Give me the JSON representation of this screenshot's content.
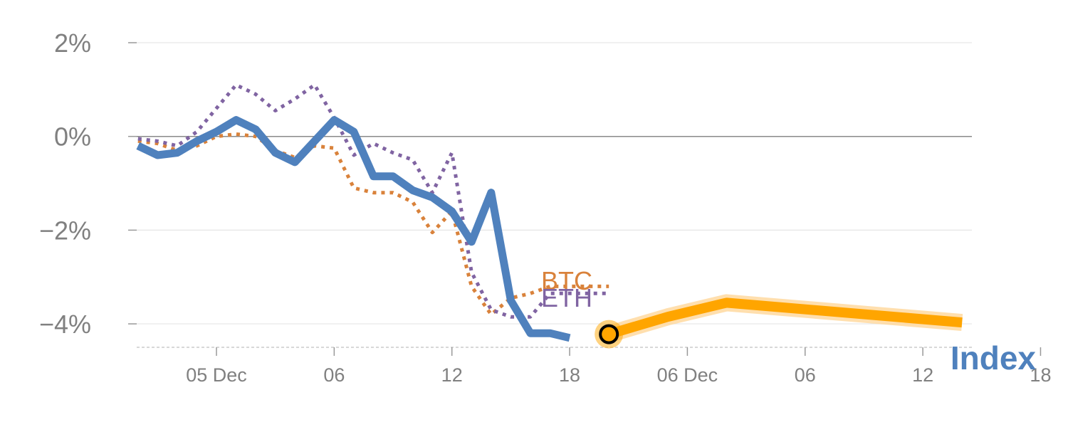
{
  "chart_data": {
    "type": "line",
    "title": "",
    "xlabel": "",
    "ylabel": "",
    "ylim": [
      -4.5,
      2.0
    ],
    "y_ticks": [
      {
        "value": 2,
        "label": "2%"
      },
      {
        "value": 0,
        "label": "0%"
      },
      {
        "value": -2,
        "label": "−2%"
      },
      {
        "value": -4,
        "label": "−4%"
      }
    ],
    "x_range": [
      -1.5,
      41.5
    ],
    "x_ticks": [
      {
        "x": 3,
        "label": "05 Dec"
      },
      {
        "x": 9,
        "label": "06"
      },
      {
        "x": 15,
        "label": "12"
      },
      {
        "x": 21,
        "label": "18"
      },
      {
        "x": 27,
        "label": "06 Dec"
      },
      {
        "x": 33,
        "label": "06"
      },
      {
        "x": 39,
        "label": "12"
      },
      {
        "x": 45,
        "label": "18"
      }
    ],
    "series": [
      {
        "name": "BTC",
        "color": "#d9823b",
        "style": "dotted",
        "label": "BTC",
        "x": [
          -1,
          0,
          1,
          2,
          3,
          4,
          5,
          6,
          7,
          8,
          9,
          10,
          11,
          12,
          13,
          14,
          15,
          16,
          17,
          18,
          19,
          20,
          21,
          22,
          23
        ],
        "values": [
          -0.1,
          -0.15,
          -0.3,
          -0.2,
          0.0,
          0.05,
          0.0,
          -0.3,
          -0.45,
          -0.2,
          -0.25,
          -1.1,
          -1.2,
          -1.2,
          -1.4,
          -2.05,
          -1.6,
          -3.2,
          -3.8,
          -3.45,
          -3.35,
          -3.2,
          -3.2,
          -3.2,
          -3.2
        ]
      },
      {
        "name": "ETH",
        "color": "#8064a2",
        "style": "dotted",
        "label": "ETH",
        "x": [
          -1,
          0,
          1,
          2,
          3,
          4,
          5,
          6,
          7,
          8,
          9,
          10,
          11,
          12,
          13,
          14,
          15,
          16,
          17,
          18,
          19,
          20,
          21,
          22,
          23
        ],
        "values": [
          -0.05,
          -0.1,
          -0.2,
          0.1,
          0.6,
          1.1,
          0.9,
          0.55,
          0.8,
          1.1,
          0.4,
          -0.4,
          -0.15,
          -0.35,
          -0.5,
          -1.2,
          -0.35,
          -2.9,
          -3.7,
          -3.85,
          -3.85,
          -3.35,
          -3.35,
          -3.35,
          -3.35
        ]
      },
      {
        "name": "Index",
        "color": "#4f81bd",
        "style": "solid",
        "label": "Index",
        "x": [
          -1,
          0,
          1,
          2,
          3,
          4,
          5,
          6,
          7,
          8,
          9,
          10,
          11,
          12,
          13,
          14,
          15,
          16,
          17,
          18,
          19,
          20,
          21
        ],
        "values": [
          -0.2,
          -0.4,
          -0.35,
          -0.1,
          0.1,
          0.35,
          0.15,
          -0.35,
          -0.55,
          -0.1,
          0.35,
          0.1,
          -0.85,
          -0.85,
          -1.15,
          -1.3,
          -1.6,
          -2.25,
          -1.2,
          -3.5,
          -4.2,
          -4.2,
          -4.3
        ]
      },
      {
        "name": "Index forecast",
        "color": "#ffa500",
        "style": "thick",
        "label": "",
        "x": [
          23,
          26,
          29,
          41
        ],
        "values": [
          -4.22,
          -3.85,
          -3.55,
          -3.97
        ]
      }
    ],
    "highlight_point": {
      "x": 23,
      "y": -4.22,
      "color": "#ffa500"
    }
  }
}
